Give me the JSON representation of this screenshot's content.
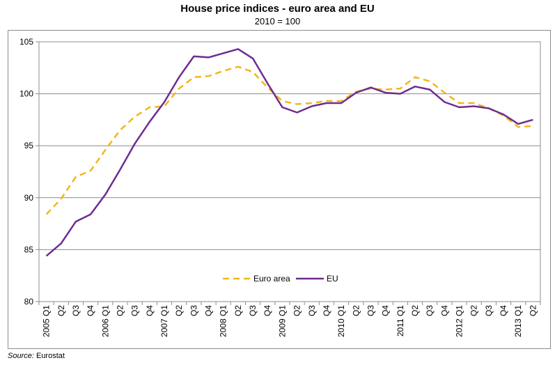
{
  "chart_data": {
    "type": "line",
    "title": "House price indices - euro area and EU",
    "subtitle": "2010 = 100",
    "xlabel": "",
    "ylabel": "",
    "ylim": [
      80,
      105
    ],
    "yticks": [
      80,
      85,
      90,
      95,
      100,
      105
    ],
    "grid": true,
    "legend_position": "bottom-center",
    "categories": [
      "2005 Q1",
      "Q2",
      "Q3",
      "Q4",
      "2006 Q1",
      "Q2",
      "Q3",
      "Q4",
      "2007 Q1",
      "Q2",
      "Q3",
      "Q4",
      "2008 Q1",
      "Q2",
      "Q3",
      "Q4",
      "2009 Q1",
      "Q2",
      "Q3",
      "Q4",
      "2010 Q1",
      "Q2",
      "Q3",
      "Q4",
      "2011 Q1",
      "Q2",
      "Q3",
      "Q4",
      "2012 Q1",
      "Q2",
      "Q3",
      "Q4",
      "2013 Q1",
      "Q2"
    ],
    "series": [
      {
        "name": "Euro area",
        "color": "#F2B619",
        "dash": true,
        "values": [
          88.4,
          89.9,
          92.0,
          92.6,
          94.6,
          96.5,
          97.8,
          98.7,
          98.8,
          100.5,
          101.6,
          101.7,
          102.2,
          102.6,
          102.1,
          100.6,
          99.3,
          99.0,
          99.1,
          99.3,
          99.3,
          100.2,
          100.5,
          100.4,
          100.5,
          101.6,
          101.2,
          100.1,
          99.1,
          99.1,
          98.6,
          97.9,
          96.8,
          96.9
        ]
      },
      {
        "name": "EU",
        "color": "#6E2C91",
        "dash": false,
        "values": [
          84.4,
          85.6,
          87.7,
          88.4,
          90.3,
          92.7,
          95.2,
          97.3,
          99.2,
          101.6,
          103.6,
          103.5,
          103.9,
          104.3,
          103.4,
          101.0,
          98.7,
          98.2,
          98.8,
          99.1,
          99.1,
          100.1,
          100.6,
          100.1,
          100.0,
          100.7,
          100.4,
          99.2,
          98.7,
          98.8,
          98.6,
          98.0,
          97.1,
          97.5
        ]
      }
    ]
  },
  "source": {
    "label": "Source:",
    "text": " Eurostat"
  }
}
